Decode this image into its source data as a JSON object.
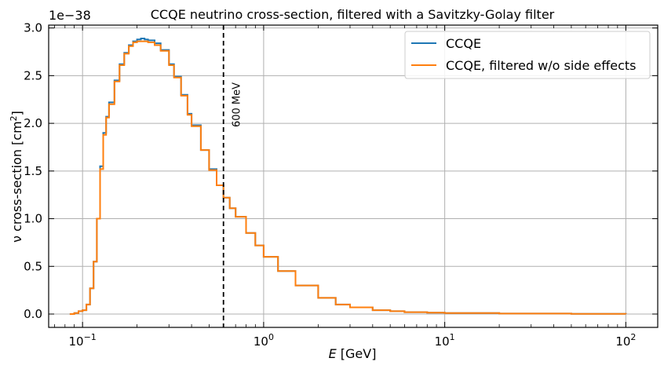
{
  "chart_data": {
    "type": "line",
    "title": "CCQE neutrino cross-section, filtered with a Savitzky-Golay filter",
    "xlabel_var": "E",
    "xlabel_unit": " [GeV]",
    "ylabel_main": "ν cross-section [cm",
    "ylabel_sup": "2",
    "ylabel_close": "]",
    "y_offset_label": "1e−38",
    "x_scale": "log",
    "xlim": [
      0.065,
      150
    ],
    "ylim": [
      -0.14,
      3.03
    ],
    "grid": true,
    "legend_position": "top-right",
    "x_ticks": [
      {
        "value": 0.1,
        "base": "10",
        "exp": "−1"
      },
      {
        "value": 1,
        "base": "10",
        "exp": "0"
      },
      {
        "value": 10,
        "base": "10",
        "exp": "1"
      },
      {
        "value": 100,
        "base": "10",
        "exp": "2"
      }
    ],
    "y_ticks": [
      {
        "value": 0.0,
        "label": "0.0"
      },
      {
        "value": 0.5,
        "label": "0.5"
      },
      {
        "value": 1.0,
        "label": "1.0"
      },
      {
        "value": 1.5,
        "label": "1.5"
      },
      {
        "value": 2.0,
        "label": "2.0"
      },
      {
        "value": 2.5,
        "label": "2.5"
      },
      {
        "value": 3.0,
        "label": "3.0"
      }
    ],
    "vline": {
      "x": 0.6,
      "label": "600 MeV",
      "color": "#000000"
    },
    "series": [
      {
        "name": "CCQE",
        "color": "#1f77b4",
        "drawstyle": "steps",
        "x": [
          0.085,
          0.09,
          0.095,
          0.1,
          0.105,
          0.11,
          0.115,
          0.12,
          0.125,
          0.13,
          0.135,
          0.14,
          0.15,
          0.16,
          0.17,
          0.18,
          0.19,
          0.2,
          0.21,
          0.22,
          0.23,
          0.25,
          0.27,
          0.3,
          0.32,
          0.35,
          0.38,
          0.4,
          0.45,
          0.5,
          0.55,
          0.6,
          0.65,
          0.7,
          0.8,
          0.9,
          1.0,
          1.2,
          1.5,
          2.0,
          2.5,
          3.0,
          4.0,
          5.0,
          6.0,
          8.0,
          10.0,
          20.0,
          50.0,
          100.0
        ],
        "y": [
          0.0,
          0.01,
          0.03,
          0.04,
          0.1,
          0.27,
          0.55,
          1.0,
          1.55,
          1.9,
          2.07,
          2.22,
          2.45,
          2.62,
          2.74,
          2.82,
          2.86,
          2.88,
          2.89,
          2.88,
          2.87,
          2.84,
          2.77,
          2.62,
          2.49,
          2.3,
          2.1,
          1.98,
          1.72,
          1.52,
          1.35,
          1.22,
          1.11,
          1.02,
          0.85,
          0.72,
          0.6,
          0.45,
          0.3,
          0.17,
          0.1,
          0.07,
          0.04,
          0.03,
          0.02,
          0.015,
          0.01,
          0.005,
          0.002,
          0.001
        ]
      },
      {
        "name": "CCQE, filtered w/o side effects",
        "color": "#ff7f0e",
        "drawstyle": "steps",
        "x": [
          0.085,
          0.09,
          0.095,
          0.1,
          0.105,
          0.11,
          0.115,
          0.12,
          0.125,
          0.13,
          0.135,
          0.14,
          0.15,
          0.16,
          0.17,
          0.18,
          0.19,
          0.2,
          0.21,
          0.22,
          0.23,
          0.25,
          0.27,
          0.3,
          0.32,
          0.35,
          0.38,
          0.4,
          0.45,
          0.5,
          0.55,
          0.6,
          0.65,
          0.7,
          0.8,
          0.9,
          1.0,
          1.2,
          1.5,
          2.0,
          2.5,
          3.0,
          4.0,
          5.0,
          6.0,
          8.0,
          10.0,
          20.0,
          50.0,
          100.0
        ],
        "y": [
          0.0,
          0.01,
          0.03,
          0.04,
          0.1,
          0.27,
          0.55,
          1.0,
          1.52,
          1.88,
          2.06,
          2.2,
          2.44,
          2.61,
          2.73,
          2.81,
          2.85,
          2.86,
          2.86,
          2.86,
          2.85,
          2.82,
          2.76,
          2.61,
          2.48,
          2.29,
          2.09,
          1.97,
          1.72,
          1.51,
          1.35,
          1.22,
          1.11,
          1.02,
          0.85,
          0.72,
          0.6,
          0.45,
          0.3,
          0.17,
          0.1,
          0.07,
          0.04,
          0.03,
          0.02,
          0.015,
          0.01,
          0.005,
          0.002,
          0.001
        ]
      }
    ]
  }
}
